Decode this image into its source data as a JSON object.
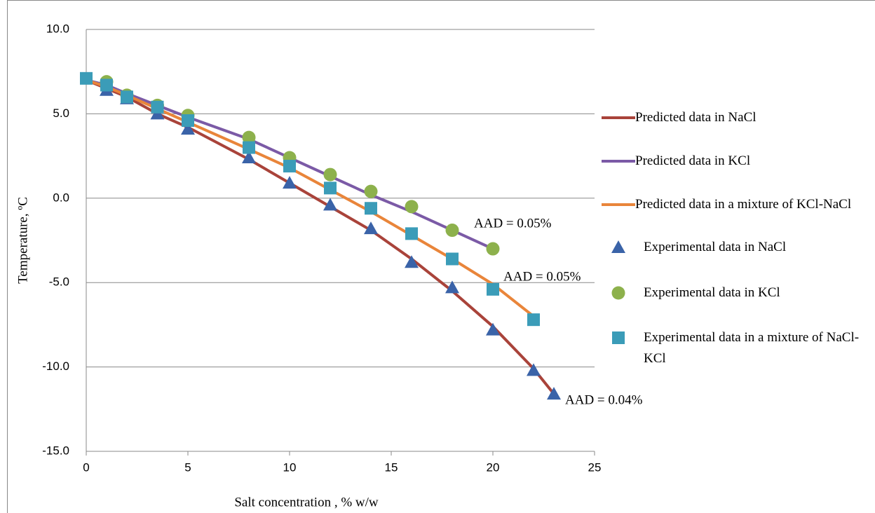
{
  "chart_data": {
    "type": "line-scatter",
    "x_label": "Salt concentration , % w/w",
    "y_label": "Temperature, ºC",
    "xlim": [
      0,
      25
    ],
    "xticks": [
      0,
      5,
      10,
      15,
      20,
      25
    ],
    "ylim": [
      -15,
      10
    ],
    "yticks": [
      {
        "value": 10,
        "label": "10.0"
      },
      {
        "value": 5,
        "label": "5.0"
      },
      {
        "value": 0,
        "label": "0.0"
      },
      {
        "value": -5,
        "label": "-5.0"
      },
      {
        "value": -10,
        "label": "-10.0"
      },
      {
        "value": -15,
        "label": "-15.0"
      }
    ],
    "grid": true,
    "legend": "right",
    "series": [
      {
        "name": "Predicted data in NaCl",
        "color": "#a9433a",
        "marker": "line",
        "x": [
          0,
          1,
          2,
          3.5,
          5,
          8,
          10,
          12,
          14,
          16,
          18,
          20,
          22,
          23
        ],
        "values": [
          7.0,
          6.5,
          6.0,
          5.0,
          4.2,
          2.3,
          0.9,
          -0.5,
          -1.9,
          -3.6,
          -5.5,
          -7.6,
          -10.1,
          -11.6
        ]
      },
      {
        "name": "Predicted data in KCl",
        "color": "#7b5aa6",
        "marker": "line",
        "x": [
          0,
          1,
          2,
          3.5,
          5,
          8,
          10,
          12,
          14,
          16,
          18,
          20
        ],
        "values": [
          7.0,
          6.7,
          6.2,
          5.5,
          4.8,
          3.5,
          2.4,
          1.3,
          0.2,
          -0.8,
          -1.9,
          -3.0
        ]
      },
      {
        "name": "Predicted data in a mixture of KCl-NaCl",
        "color": "#e9853a",
        "marker": "line",
        "x": [
          0,
          1,
          2,
          3.5,
          5,
          8,
          10,
          12,
          14,
          16,
          18,
          20,
          22
        ],
        "values": [
          7.0,
          6.6,
          6.1,
          5.3,
          4.5,
          2.9,
          1.8,
          0.5,
          -0.8,
          -2.2,
          -3.6,
          -5.1,
          -7.0
        ]
      },
      {
        "name": "Experimental data in NaCl",
        "color": "#3a63a8",
        "marker": "triangle",
        "x": [
          1,
          2,
          3.5,
          5,
          8,
          10,
          12,
          14,
          16,
          18,
          20,
          22,
          23
        ],
        "values": [
          6.4,
          5.9,
          5.0,
          4.1,
          2.4,
          0.9,
          -0.4,
          -1.8,
          -3.8,
          -5.3,
          -7.8,
          -10.2,
          -11.6
        ]
      },
      {
        "name": "Experimental data in KCl",
        "color": "#8db14c",
        "marker": "circle",
        "x": [
          1,
          2,
          3.5,
          5,
          8,
          10,
          12,
          14,
          16,
          18,
          20
        ],
        "values": [
          6.9,
          6.1,
          5.5,
          4.9,
          3.6,
          2.4,
          1.4,
          0.4,
          -0.5,
          -1.9,
          -3.0
        ]
      },
      {
        "name": "Experimental data in a mixture of NaCl-KCl",
        "color": "#3b9cb8",
        "marker": "square",
        "x": [
          0,
          1,
          2,
          3.5,
          5,
          8,
          10,
          12,
          14,
          16,
          18,
          20,
          22
        ],
        "values": [
          7.1,
          6.7,
          6.0,
          5.4,
          4.6,
          3.0,
          1.9,
          0.6,
          -0.6,
          -2.1,
          -3.6,
          -5.4,
          -7.2
        ]
      }
    ],
    "annotations": [
      "AAD = 0.05%",
      "AAD = 0.05%",
      "AAD = 0.04%"
    ]
  }
}
